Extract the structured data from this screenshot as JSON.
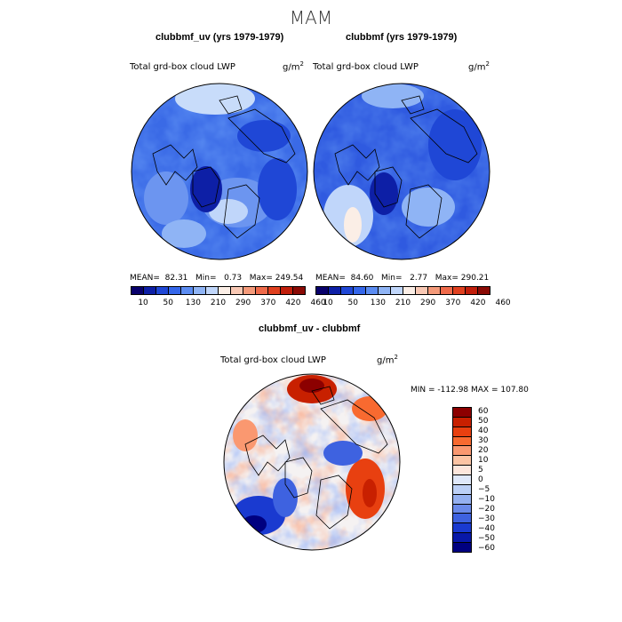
{
  "season": "MAM",
  "panel_left": {
    "title": "clubbmf_uv (yrs 1979-1979)",
    "variable": "Total grd-box cloud LWP",
    "units_base": "g/m",
    "units_exp": "2",
    "mean_label": "MEAN=",
    "mean": "82.31",
    "min_label": "Min=",
    "min": "0.73",
    "max_label": "Max=",
    "max": "249.54"
  },
  "panel_right": {
    "title": "clubbmf (yrs 1979-1979)",
    "variable": "Total grd-box cloud LWP",
    "units_base": "g/m",
    "units_exp": "2",
    "mean_label": "MEAN=",
    "mean": "84.60",
    "min_label": "Min=",
    "min": "2.77",
    "max_label": "Max=",
    "max": "290.21"
  },
  "panel_diff": {
    "title": "clubbmf_uv - clubbmf",
    "variable": "Total grd-box cloud LWP",
    "units_base": "g/m",
    "units_exp": "2",
    "minmax": "MIN = -112.98 MAX = 107.80"
  },
  "top_colorbar": {
    "colors": [
      "#08006b",
      "#0d1fa6",
      "#1f47d6",
      "#3466ea",
      "#5b8cf2",
      "#8fb4f5",
      "#c0d6fa",
      "#fbeee6",
      "#f8c8b4",
      "#f49a7a",
      "#ef6a4a",
      "#e0401f",
      "#c11e0b",
      "#8a0a05"
    ],
    "ticks": [
      "10",
      "50",
      "130",
      "210",
      "290",
      "370",
      "420",
      "460"
    ]
  },
  "diff_colorbar": {
    "colors": [
      "#8c0000",
      "#c82000",
      "#e84010",
      "#f86a30",
      "#fa9870",
      "#fcc4a4",
      "#fde6dc",
      "#dfe8fa",
      "#bcd0f6",
      "#94b0f0",
      "#6a8aea",
      "#3e62e0",
      "#1a3ad0",
      "#0818a8",
      "#000080"
    ],
    "ticks": [
      "60",
      "50",
      "40",
      "30",
      "20",
      "10",
      "5",
      "0",
      "−5",
      "−10",
      "−20",
      "−30",
      "−40",
      "−50",
      "−60"
    ]
  }
}
